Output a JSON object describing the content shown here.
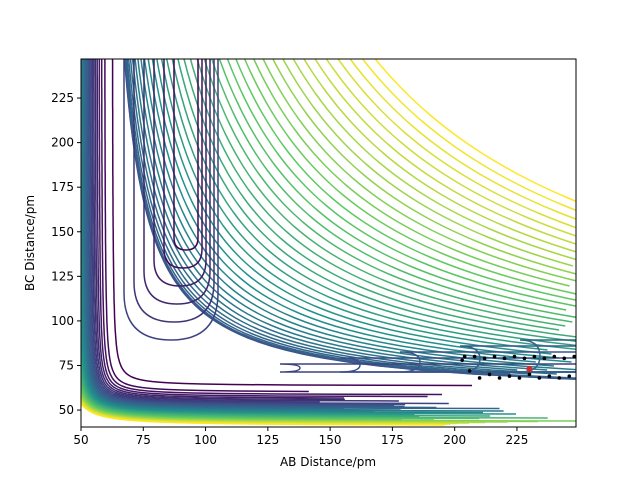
{
  "chart_data": {
    "type": "contour",
    "xlabel": "AB Distance/pm",
    "ylabel": "BC Distance/pm",
    "xlim": [
      50,
      248.7
    ],
    "ylim": [
      40.5,
      246.9
    ],
    "xticks": [
      50,
      75,
      100,
      125,
      150,
      175,
      200,
      225
    ],
    "yticks": [
      50,
      75,
      100,
      125,
      150,
      175,
      200,
      225
    ],
    "series": [
      {
        "color": "#000000",
        "x": [
          248,
          246,
          244,
          242,
          240,
          238,
          236,
          234,
          232,
          230,
          228,
          226,
          224,
          222,
          220,
          218,
          216,
          214,
          212,
          210,
          208,
          206,
          204,
          203
        ],
        "y": [
          80,
          69,
          79,
          68,
          80,
          69,
          79,
          68,
          80,
          70,
          79,
          68,
          80,
          69,
          79,
          68,
          80,
          70,
          79,
          68,
          80,
          72,
          80,
          78
        ]
      },
      {
        "color": "#d62728",
        "x": [
          230
        ],
        "y": [
          73
        ]
      }
    ]
  }
}
